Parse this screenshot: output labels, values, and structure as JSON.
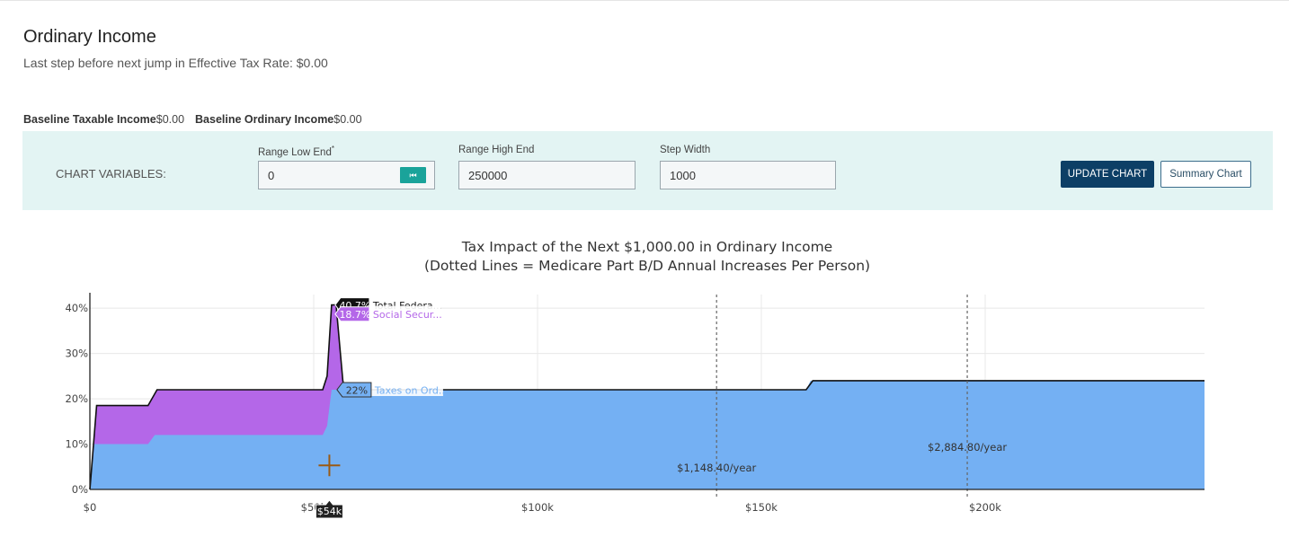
{
  "page": {
    "title": "Ordinary Income",
    "subtitle": "Last step before next jump in Effective Tax Rate: $0.00",
    "baseline": {
      "taxable_label": "Baseline Taxable Income",
      "taxable_value": "$0.00",
      "ordinary_label": "Baseline Ordinary Income",
      "ordinary_value": "$0.00"
    }
  },
  "chart_variables": {
    "label": "CHART VARIABLES:",
    "range_low": {
      "label": "Range Low End",
      "required_mark": "*",
      "value": "0",
      "reset_icon": "rewind-icon"
    },
    "range_high": {
      "label": "Range High End",
      "value": "250000"
    },
    "step_width": {
      "label": "Step Width",
      "value": "1000"
    },
    "update_button": "UPDATE CHART",
    "summary_button": "Summary Chart"
  },
  "chart_data": {
    "type": "area",
    "title": "Tax Impact of the Next $1,000.00 in Ordinary Income",
    "subtitle": "(Dotted Lines = Medicare Part B/D Annual Increases Per Person)",
    "xlim": [
      0,
      249000
    ],
    "ylim": [
      0,
      43
    ],
    "x_ticks": [
      {
        "value": 0,
        "label": "$0"
      },
      {
        "value": 50000,
        "label": "$50k"
      },
      {
        "value": 100000,
        "label": "$100k"
      },
      {
        "value": 150000,
        "label": "$150k"
      },
      {
        "value": 200000,
        "label": "$200k"
      }
    ],
    "y_ticks": [
      {
        "value": 0,
        "label": "0%"
      },
      {
        "value": 10,
        "label": "10%"
      },
      {
        "value": 20,
        "label": "20%"
      },
      {
        "value": 30,
        "label": "30%"
      },
      {
        "value": 40,
        "label": "40%"
      }
    ],
    "grid": true,
    "colors": {
      "ordinary": "#74b0f3",
      "social_security": "#b467e8",
      "total_line": "#111111"
    },
    "series": [
      {
        "name": "Taxes on Ordinary Income",
        "points": [
          [
            0,
            0
          ],
          [
            1000,
            10
          ],
          [
            13000,
            10
          ],
          [
            14500,
            12
          ],
          [
            52000,
            12
          ],
          [
            53000,
            14
          ],
          [
            54000,
            22
          ],
          [
            160000,
            22
          ],
          [
            161000,
            24
          ],
          [
            249000,
            24
          ]
        ]
      },
      {
        "name": "Total Federal",
        "points": [
          [
            0,
            0
          ],
          [
            1500,
            18.5
          ],
          [
            13000,
            18.5
          ],
          [
            15000,
            22
          ],
          [
            52000,
            22
          ],
          [
            53000,
            25
          ],
          [
            54000,
            40.7
          ],
          [
            55000,
            40.7
          ],
          [
            56500,
            24
          ],
          [
            57000,
            22
          ],
          [
            160000,
            22
          ],
          [
            161500,
            24
          ],
          [
            249000,
            24
          ]
        ]
      }
    ],
    "hover": {
      "x_label": "$54k",
      "labels": [
        {
          "value": "40.7%",
          "text": "Total Federa...",
          "y": 40.7
        },
        {
          "value": "18.7%",
          "text": "Social Secur...",
          "y": 38.9
        },
        {
          "value": "22%",
          "text": "Taxes on Ord...",
          "y": 22
        }
      ],
      "cursor_at": [
        53500,
        5.3
      ]
    },
    "medicare_lines": [
      {
        "x": 140000,
        "label": "$1,148.40/year",
        "label_y": 4
      },
      {
        "x": 196000,
        "label": "$2,884.80/year",
        "label_y": 8.5
      }
    ]
  }
}
